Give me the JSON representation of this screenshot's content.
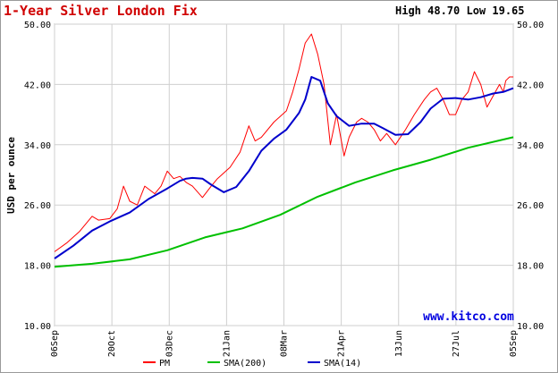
{
  "header": {
    "title": "1-Year Silver London Fix",
    "high_low": "High 48.70 Low 19.65"
  },
  "watermark": "www.kitco.com",
  "chart_data": {
    "type": "line",
    "title": "1-Year Silver London Fix",
    "ylabel": "USD per ounce",
    "xlabel": "",
    "ylim": [
      10,
      50
    ],
    "yticks": [
      10,
      18,
      26,
      34,
      42,
      50
    ],
    "ytick_labels": [
      "10.00",
      "18.00",
      "26.00",
      "34.00",
      "42.00",
      "50.00"
    ],
    "xtick_labels": [
      "06Sep",
      "20Oct",
      "03Dec",
      "21Jan",
      "08Mar",
      "21Apr",
      "13Jun",
      "27Jul",
      "05Sep"
    ],
    "grid": true,
    "legend_position": "bottom",
    "colors": {
      "PM": "#ff0000",
      "SMA(200)": "#00c000",
      "SMA(14)": "#0000cc"
    },
    "series": [
      {
        "name": "PM",
        "x": [
          0,
          10,
          20,
          30,
          35,
          44,
          50,
          55,
          60,
          66,
          72,
          80,
          85,
          90,
          95,
          100,
          105,
          110,
          118,
          125,
          130,
          140,
          148,
          155,
          160,
          165,
          175,
          185,
          190,
          195,
          200,
          205,
          210,
          215,
          220,
          225,
          231,
          235,
          238,
          241,
          245,
          250,
          255,
          260,
          265,
          272,
          280,
          287,
          295,
          300,
          305,
          310,
          315,
          320,
          325,
          330,
          335,
          340,
          345,
          350,
          355,
          358,
          360,
          363,
          366
        ],
        "values": [
          19.8,
          21.0,
          22.5,
          24.5,
          24.0,
          24.2,
          25.5,
          28.5,
          26.5,
          26.0,
          28.5,
          27.5,
          28.5,
          30.5,
          29.5,
          29.8,
          29.0,
          28.5,
          27.0,
          28.5,
          29.5,
          31.0,
          33.0,
          36.5,
          34.5,
          35.0,
          37.0,
          38.5,
          41.0,
          44.0,
          47.5,
          48.7,
          46.0,
          42.0,
          34.0,
          38.0,
          32.5,
          35.0,
          36.0,
          37.0,
          37.5,
          37.0,
          36.0,
          34.5,
          35.5,
          34.0,
          36.0,
          38.0,
          40.0,
          41.0,
          41.5,
          40.0,
          38.0,
          38.0,
          40.0,
          41.0,
          43.7,
          42.0,
          39.0,
          40.5,
          42.0,
          41.0,
          42.5,
          43.0,
          43.0
        ]
      },
      {
        "name": "SMA(200)",
        "x": [
          0,
          30,
          60,
          90,
          120,
          150,
          180,
          210,
          240,
          270,
          300,
          330,
          366
        ],
        "values": [
          17.8,
          18.2,
          18.8,
          20.0,
          21.7,
          22.9,
          24.7,
          27.1,
          29.0,
          30.6,
          32.0,
          33.6,
          35.0
        ]
      },
      {
        "name": "SMA(14)",
        "x": [
          0,
          15,
          30,
          45,
          60,
          75,
          90,
          100,
          105,
          110,
          118,
          125,
          135,
          145,
          155,
          165,
          175,
          185,
          195,
          200,
          205,
          212,
          218,
          225,
          235,
          245,
          255,
          262,
          272,
          282,
          292,
          300,
          310,
          320,
          330,
          340,
          350,
          358,
          366
        ],
        "values": [
          18.9,
          20.6,
          22.6,
          23.9,
          25.0,
          26.8,
          28.2,
          29.2,
          29.5,
          29.6,
          29.5,
          28.7,
          27.7,
          28.4,
          30.5,
          33.2,
          34.8,
          36.0,
          38.2,
          40.0,
          43.0,
          42.5,
          39.5,
          37.8,
          36.5,
          36.8,
          36.8,
          36.2,
          35.3,
          35.4,
          37.0,
          38.8,
          40.1,
          40.2,
          40.0,
          40.3,
          40.8,
          41.0,
          41.5
        ]
      }
    ]
  }
}
